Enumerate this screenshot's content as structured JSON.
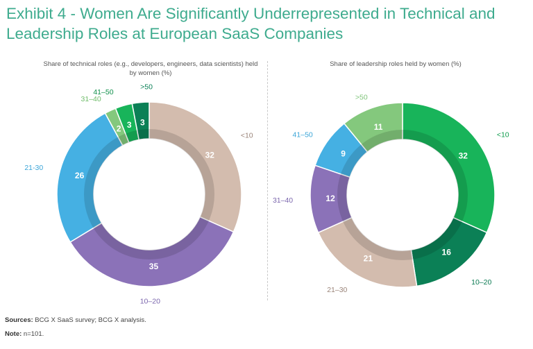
{
  "title": "Exhibit 4 - Women Are Significantly Underrepresented in Technical and Leadership Roles at European SaaS Companies",
  "footer": {
    "sources_label": "Sources:",
    "sources_text": " BCG X SaaS survey; BCG X analysis.",
    "note_label": "Note:",
    "note_text": " n=101."
  },
  "colors": {
    "title": "#3eab8e",
    "beige": "#d3bcae",
    "purple": "#8b72b8",
    "blue": "#45b0e3",
    "light_green": "#84c87d",
    "green": "#18b45a",
    "dark_green": "#0b8056"
  },
  "chart_data": [
    {
      "type": "pie",
      "subtitle": "Share of technical roles (e.g., developers, engineers, data scientists) held by women (%)",
      "slices": [
        {
          "label": "<10",
          "value": 32,
          "color": "#d3bcae",
          "label_color": "#9a8479"
        },
        {
          "label": "10–20",
          "value": 35,
          "color": "#8b72b8",
          "label_color": "#7b66ad"
        },
        {
          "label": "21-30",
          "value": 26,
          "color": "#45b0e3",
          "label_color": "#3aa5d8"
        },
        {
          "label": "31–40",
          "value": 2,
          "color": "#84c87d",
          "label_color": "#6fbc6a"
        },
        {
          "label": "41–50",
          "value": 3,
          "color": "#18b45a",
          "label_color": "#0f8f4a"
        },
        {
          "label": ">50",
          "value": 3,
          "color": "#0b8056",
          "label_color": "#0b8056"
        }
      ]
    },
    {
      "type": "pie",
      "subtitle": "Share of leadership roles held by women (%)",
      "slices": [
        {
          "label": "<10",
          "value": 32,
          "color": "#18b45a",
          "label_color": "#0f9c4c"
        },
        {
          "label": "10–20",
          "value": 16,
          "color": "#0b8056",
          "label_color": "#0b7a52"
        },
        {
          "label": "21–30",
          "value": 21,
          "color": "#d3bcae",
          "label_color": "#9a8479"
        },
        {
          "label": "31–40",
          "value": 12,
          "color": "#8b72b8",
          "label_color": "#7b66ad"
        },
        {
          "label": "41–50",
          "value": 9,
          "color": "#45b0e3",
          "label_color": "#3aa5d8"
        },
        {
          "label": ">50",
          "value": 11,
          "color": "#84c87d",
          "label_color": "#7fc47a"
        }
      ]
    }
  ]
}
